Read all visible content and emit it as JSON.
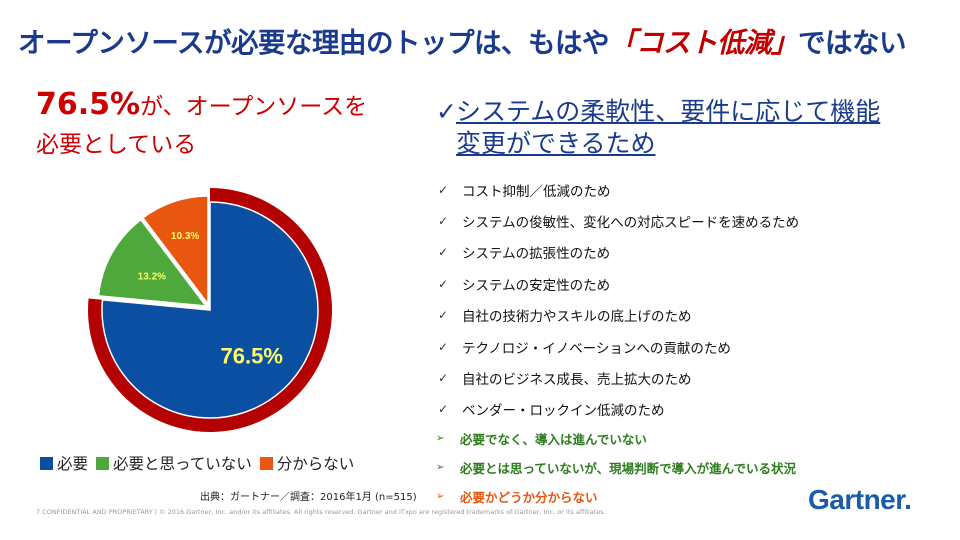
{
  "title": {
    "prefix": "オープンソースが必要な理由のトップは、もはや",
    "highlight": "「コスト低減」",
    "suffix": "ではない"
  },
  "headline": {
    "pct": "76.5%",
    "line1_rest": "が、オープンソースを",
    "line2": "必要としている"
  },
  "chart_data": {
    "type": "pie",
    "categories": [
      "必要",
      "必要と思っていない",
      "分からない"
    ],
    "values": [
      76.5,
      13.2,
      10.3
    ],
    "labels": [
      "76.5%",
      "13.2%",
      "10.3%"
    ],
    "colors": [
      "#0b4fa2",
      "#4fa83b",
      "#e8560f"
    ],
    "highlight_ring_color": "#b30000",
    "label_color": "#ffff66",
    "legend_position": "bottom"
  },
  "source": "出典：ガートナー／調査：2016年1月 (n=515)",
  "right": {
    "check": "✓",
    "heading_line1": "システムの柔軟性、要件に応じて機能",
    "heading_line2": "変更ができるため",
    "reasons": [
      "コスト抑制／低減のため",
      "システムの俊敏性、変化への対応スピードを速めるため",
      "システムの拡張性のため",
      "システムの安定性のため",
      "自社の技術力やスキルの底上げのため",
      "テクノロジ・イノベーションへの貢献のため",
      "自社のビジネス成長、売上拡大のため",
      "ベンダー・ロックイン低減のため"
    ],
    "others": [
      {
        "text": "必要でなく、導入は進んでいない",
        "color": "#2e7d1e"
      },
      {
        "text": "必要とは思っていないが、現場判断で導入が進んでいる状況",
        "color": "#2e7d1e"
      },
      {
        "text": "必要かどうか分からない",
        "color": "#e8560f"
      }
    ]
  },
  "footer": "7   CONFIDENTIAL AND PROPRIETARY  |  © 2016 Gartner, Inc. and/or its affiliates. All rights reserved. Gartner and ITxpo are registered trademarks of Gartner, Inc. or its affiliates.",
  "logo": {
    "text": "Gartner",
    "dot": "."
  }
}
